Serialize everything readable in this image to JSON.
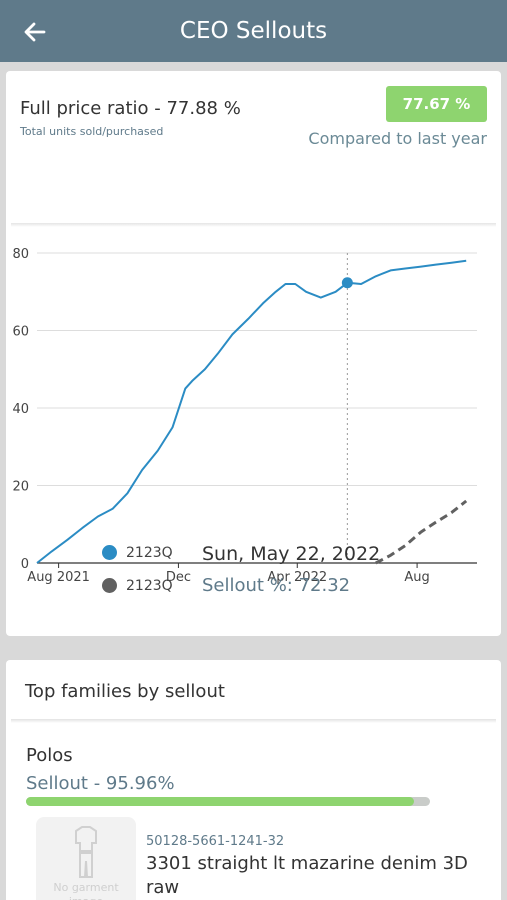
{
  "header": {
    "title": "CEO Sellouts",
    "back_icon": "arrow-left-icon"
  },
  "ratio": {
    "title": "Full price ratio - 77.88 %",
    "subtitle": "Total units sold/purchased",
    "badge": "77.67 %",
    "badge_color": "#8ed46f",
    "compare_label": "Compared to last year"
  },
  "chart_data": {
    "type": "line",
    "x_ticks": [
      "Aug 2021",
      "Dec",
      "Apr 2022",
      "Aug"
    ],
    "y_ticks": [
      "0",
      "20",
      "40",
      "60",
      "80"
    ],
    "ylim": [
      0,
      80
    ],
    "grid": true,
    "series": [
      {
        "name": "2123Q",
        "color": "#2b8cc4",
        "style": "solid",
        "points": [
          [
            "2021-07-10",
            0
          ],
          [
            "2021-07-25",
            3
          ],
          [
            "2021-08-10",
            6
          ],
          [
            "2021-08-25",
            9
          ],
          [
            "2021-09-10",
            12
          ],
          [
            "2021-09-25",
            14
          ],
          [
            "2021-10-10",
            18
          ],
          [
            "2021-10-25",
            24
          ],
          [
            "2021-11-10",
            29
          ],
          [
            "2021-11-25",
            35
          ],
          [
            "2021-12-08",
            45
          ],
          [
            "2021-12-15",
            47
          ],
          [
            "2021-12-28",
            50
          ],
          [
            "2022-01-10",
            54
          ],
          [
            "2022-01-25",
            59
          ],
          [
            "2022-02-10",
            63
          ],
          [
            "2022-02-25",
            67
          ],
          [
            "2022-03-10",
            70
          ],
          [
            "2022-03-20",
            72
          ],
          [
            "2022-03-30",
            72
          ],
          [
            "2022-04-10",
            70
          ],
          [
            "2022-04-25",
            68.5
          ],
          [
            "2022-05-10",
            70
          ],
          [
            "2022-05-22",
            72.32
          ],
          [
            "2022-06-05",
            72
          ],
          [
            "2022-06-20",
            74
          ],
          [
            "2022-07-05",
            75.5
          ],
          [
            "2022-07-20",
            76
          ],
          [
            "2022-08-05",
            76.5
          ],
          [
            "2022-08-20",
            77
          ],
          [
            "2022-09-05",
            77.5
          ],
          [
            "2022-09-20",
            78
          ]
        ]
      },
      {
        "name": "2123Q",
        "color": "#616161",
        "style": "dashed",
        "points": [
          [
            "2022-06-20",
            0
          ],
          [
            "2022-07-05",
            2
          ],
          [
            "2022-07-20",
            4.5
          ],
          [
            "2022-08-05",
            8
          ],
          [
            "2022-08-20",
            10.5
          ],
          [
            "2022-09-05",
            13
          ],
          [
            "2022-09-20",
            16
          ]
        ]
      }
    ],
    "highlight": {
      "date": "2022-05-22",
      "value": 72.32
    }
  },
  "legend": {
    "series1_name": "2123Q",
    "series2_name": "2123Q",
    "date": "Sun, May 22, 2022",
    "sellout": "Sellout %: 72.32"
  },
  "families": {
    "title": "Top families by sellout",
    "family_name": "Polos",
    "sellout_label": "Sellout - 95.96%",
    "sellout_value": 95.96,
    "garment_placeholder": "No garment image",
    "garment_icon": "garment-icon",
    "sku": "50128-5661-1241-32",
    "product_name": "3301 straight lt mazarine denim 3D raw"
  }
}
